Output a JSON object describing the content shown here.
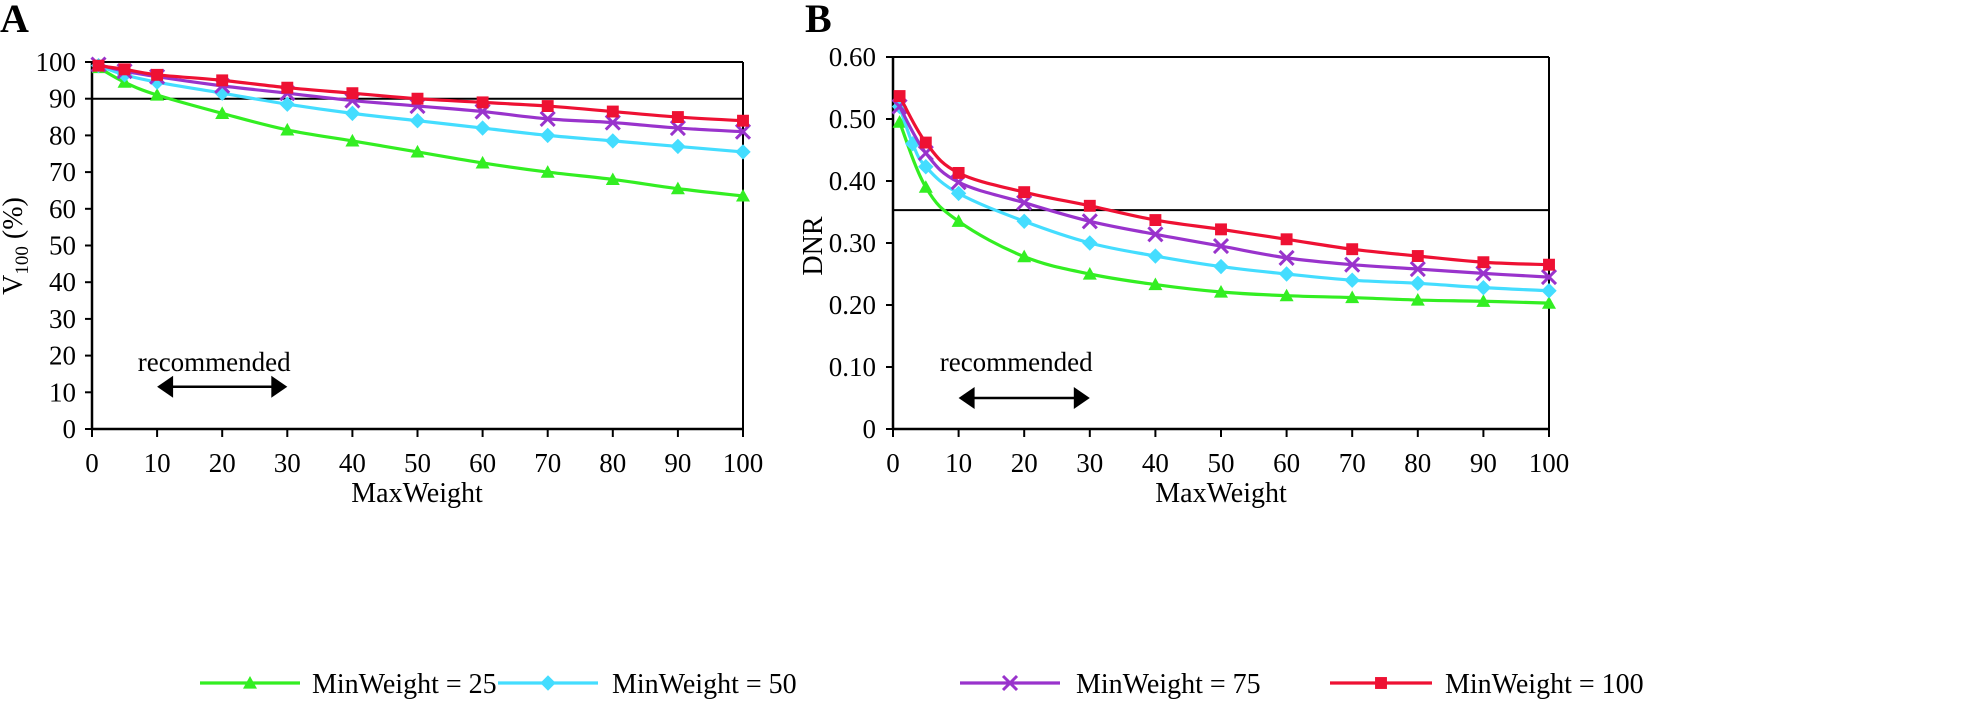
{
  "legend": {
    "position": "bottom-center",
    "items": [
      {
        "label": "MinWeight = 25",
        "color": "#33ee22",
        "marker": "triangle"
      },
      {
        "label": "MinWeight = 50",
        "color": "#44ddff",
        "marker": "diamond"
      },
      {
        "label": "MinWeight = 75",
        "color": "#9933cc",
        "marker": "x"
      },
      {
        "label": "MinWeight = 100",
        "color": "#ee1133",
        "marker": "square"
      }
    ]
  },
  "chart_data": [
    {
      "panel": "A",
      "type": "line",
      "title": "",
      "xlabel": "MaxWeight",
      "ylabel": "V100 (%)",
      "ylabel_main": "V",
      "ylabel_sub": "100",
      "ylabel_suffix": " (%)",
      "xlim": [
        0,
        100
      ],
      "ylim": [
        0,
        100
      ],
      "xticks": [
        0,
        10,
        20,
        30,
        40,
        50,
        60,
        70,
        80,
        90,
        100
      ],
      "yticks": [
        0,
        10,
        20,
        30,
        40,
        50,
        60,
        70,
        80,
        90,
        100
      ],
      "xtick_labels": [
        "0",
        "10",
        "20",
        "30",
        "40",
        "50",
        "60",
        "70",
        "80",
        "90",
        "100"
      ],
      "ytick_labels": [
        "0",
        "10",
        "20",
        "30",
        "40",
        "50",
        "60",
        "70",
        "80",
        "90",
        "100"
      ],
      "grid": false,
      "reference_lines": [
        90,
        100
      ],
      "annotation": {
        "text": "recommended",
        "x_range": [
          10,
          30
        ],
        "arrow_y": 11.5,
        "text_y": 18.5
      },
      "x": [
        1,
        5,
        10,
        20,
        30,
        40,
        50,
        60,
        70,
        80,
        90,
        100
      ],
      "series": [
        {
          "name": "MinWeight = 25",
          "color": "#33ee22",
          "marker": "triangle",
          "values": [
            98.5,
            94.5,
            91.0,
            86.0,
            81.5,
            78.5,
            75.5,
            72.5,
            70.0,
            68.0,
            65.5,
            63.5
          ]
        },
        {
          "name": "MinWeight = 50",
          "color": "#44ddff",
          "marker": "diamond",
          "values": [
            99.0,
            96.5,
            94.5,
            91.5,
            88.5,
            86.0,
            84.0,
            82.0,
            80.0,
            78.5,
            77.0,
            75.5
          ]
        },
        {
          "name": "MinWeight = 75",
          "color": "#9933cc",
          "marker": "x",
          "values": [
            99.3,
            97.5,
            96.0,
            93.5,
            91.5,
            89.5,
            88.0,
            86.5,
            84.5,
            83.5,
            82.0,
            81.0
          ]
        },
        {
          "name": "MinWeight = 100",
          "color": "#ee1133",
          "marker": "square",
          "values": [
            99.0,
            98.0,
            96.5,
            95.0,
            93.0,
            91.5,
            90.0,
            89.0,
            88.0,
            86.5,
            85.0,
            84.0
          ]
        }
      ]
    },
    {
      "panel": "B",
      "type": "line",
      "title": "",
      "xlabel": "MaxWeight",
      "ylabel": "DNR",
      "xlim": [
        0,
        100
      ],
      "ylim": [
        0,
        0.6
      ],
      "xticks": [
        0,
        10,
        20,
        30,
        40,
        50,
        60,
        70,
        80,
        90,
        100
      ],
      "yticks": [
        0,
        0.1,
        0.2,
        0.3,
        0.4,
        0.5,
        0.6
      ],
      "xtick_labels": [
        "0",
        "10",
        "20",
        "30",
        "40",
        "50",
        "60",
        "70",
        "80",
        "90",
        "100"
      ],
      "ytick_labels": [
        "0",
        "0.10",
        "0.20",
        "0.30",
        "0.40",
        "0.50",
        "0.60"
      ],
      "grid": false,
      "reference_lines": [
        0.353,
        0.6
      ],
      "annotation": {
        "text": "recommended",
        "x_range": [
          10,
          30
        ],
        "arrow_y": 0.05,
        "text_y": 0.11
      },
      "x": [
        1,
        3,
        5,
        10,
        20,
        30,
        40,
        50,
        60,
        70,
        80,
        90,
        100
      ],
      "series": [
        {
          "name": "MinWeight = 25",
          "color": "#33ee22",
          "marker": "triangle",
          "values": [
            0.495,
            null,
            0.39,
            0.335,
            0.278,
            0.25,
            0.233,
            0.221,
            0.215,
            0.212,
            0.208,
            0.206,
            0.203
          ]
        },
        {
          "name": "MinWeight = 50",
          "color": "#44ddff",
          "marker": "diamond",
          "values": [
            0.52,
            0.46,
            0.423,
            0.38,
            0.335,
            0.3,
            0.279,
            0.262,
            0.25,
            0.24,
            0.235,
            0.228,
            0.223
          ]
        },
        {
          "name": "MinWeight = 75",
          "color": "#9933cc",
          "marker": "x",
          "values": [
            0.52,
            null,
            0.445,
            0.398,
            0.365,
            0.335,
            0.314,
            0.295,
            0.276,
            0.265,
            0.258,
            0.251,
            0.245
          ]
        },
        {
          "name": "MinWeight = 100",
          "color": "#ee1133",
          "marker": "square",
          "values": [
            0.537,
            null,
            0.462,
            0.413,
            0.382,
            0.36,
            0.337,
            0.322,
            0.306,
            0.29,
            0.279,
            0.269,
            0.265
          ]
        }
      ]
    }
  ]
}
